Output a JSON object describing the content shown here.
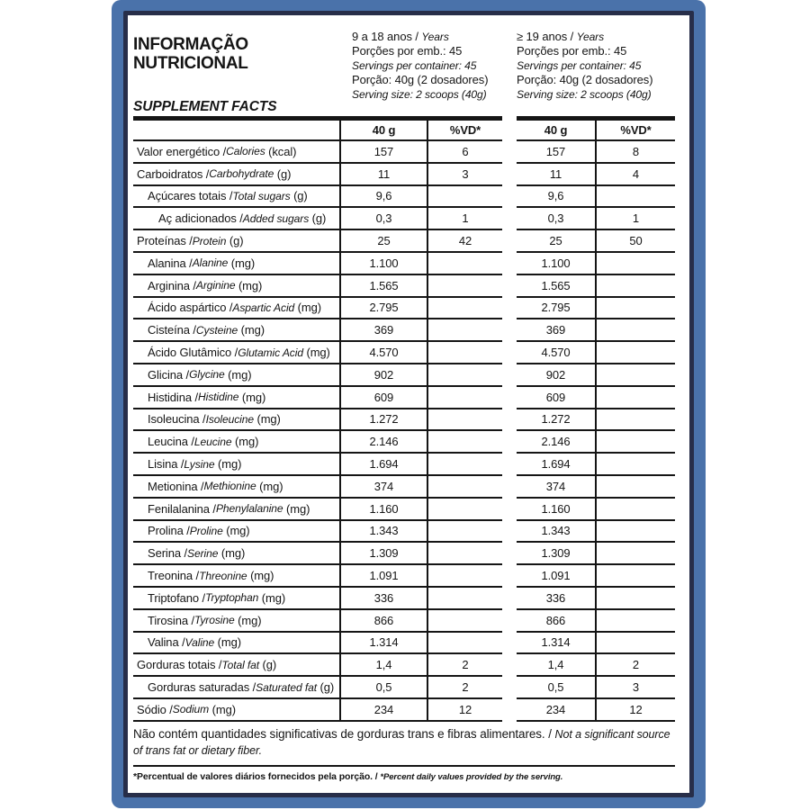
{
  "colors": {
    "frame_blue": "#4a72aa",
    "frame_navy": "#272e49",
    "line_black": "#151515"
  },
  "header": {
    "title_line1": "INFORMAÇÃO",
    "title_line2": "NUTRICIONAL",
    "subtitle": "SUPPLEMENT FACTS",
    "groups": [
      {
        "name": "9-18-years",
        "lines": [
          {
            "pt": "9 a 18 anos / ",
            "en": "Years"
          },
          {
            "pt": "Porções por emb.: 45",
            "en": ""
          },
          {
            "pt": "",
            "en": "Servings per container: 45"
          },
          {
            "pt": "Porção: 40g (2 dosadores)",
            "en": ""
          },
          {
            "pt": "",
            "en": "Serving size: 2 scoops (40g)"
          }
        ]
      },
      {
        "name": "19-plus-years",
        "lines": [
          {
            "pt": "≥ 19 anos / ",
            "en": "Years"
          },
          {
            "pt": "Porções por emb.: 45",
            "en": ""
          },
          {
            "pt": "",
            "en": "Servings per container: 45"
          },
          {
            "pt": "Porção: 40g (2 dosadores)",
            "en": ""
          },
          {
            "pt": "",
            "en": "Serving size: 2 scoops (40g)"
          }
        ]
      }
    ]
  },
  "table": {
    "col_headers": {
      "amount": "40 g",
      "dv": "%VD*"
    },
    "rows": [
      {
        "pt": "Valor energético",
        "en": "Calories",
        "unit": "(kcal)",
        "indent": 0,
        "g1": {
          "amount": "157",
          "dv": "6"
        },
        "g2": {
          "amount": "157",
          "dv": "8"
        }
      },
      {
        "pt": "Carboidratos",
        "en": "Carbohydrate",
        "unit": "(g)",
        "indent": 0,
        "g1": {
          "amount": "11",
          "dv": "3"
        },
        "g2": {
          "amount": "11",
          "dv": "4"
        }
      },
      {
        "pt": "Açúcares totais",
        "en": "Total sugars",
        "unit": "(g)",
        "indent": 1,
        "g1": {
          "amount": "9,6",
          "dv": ""
        },
        "g2": {
          "amount": "9,6",
          "dv": ""
        }
      },
      {
        "pt": "Aç adicionados",
        "en": "Added sugars",
        "unit": "(g)",
        "indent": 2,
        "g1": {
          "amount": "0,3",
          "dv": "1"
        },
        "g2": {
          "amount": "0,3",
          "dv": "1"
        }
      },
      {
        "pt": "Proteínas",
        "en": "Protein",
        "unit": "(g)",
        "indent": 0,
        "g1": {
          "amount": "25",
          "dv": "42"
        },
        "g2": {
          "amount": "25",
          "dv": "50"
        }
      },
      {
        "pt": "Alanina",
        "en": "Alanine",
        "unit": "(mg)",
        "indent": 1,
        "g1": {
          "amount": "1.100",
          "dv": ""
        },
        "g2": {
          "amount": "1.100",
          "dv": ""
        }
      },
      {
        "pt": "Arginina",
        "en": "Arginine",
        "unit": "(mg)",
        "indent": 1,
        "g1": {
          "amount": "1.565",
          "dv": ""
        },
        "g2": {
          "amount": "1.565",
          "dv": ""
        }
      },
      {
        "pt": "Ácido aspártico",
        "en": "Aspartic Acid",
        "unit": "(mg)",
        "indent": 1,
        "g1": {
          "amount": "2.795",
          "dv": ""
        },
        "g2": {
          "amount": "2.795",
          "dv": ""
        }
      },
      {
        "pt": "Cisteína",
        "en": "Cysteine",
        "unit": "(mg)",
        "indent": 1,
        "g1": {
          "amount": "369",
          "dv": ""
        },
        "g2": {
          "amount": "369",
          "dv": ""
        }
      },
      {
        "pt": "Ácido Glutâmico",
        "en": "Glutamic Acid",
        "unit": "(mg)",
        "indent": 1,
        "g1": {
          "amount": "4.570",
          "dv": ""
        },
        "g2": {
          "amount": "4.570",
          "dv": ""
        }
      },
      {
        "pt": "Glicina",
        "en": "Glycine",
        "unit": "(mg)",
        "indent": 1,
        "g1": {
          "amount": "902",
          "dv": ""
        },
        "g2": {
          "amount": "902",
          "dv": ""
        }
      },
      {
        "pt": "Histidina",
        "en": "Histidine",
        "unit": "(mg)",
        "indent": 1,
        "g1": {
          "amount": "609",
          "dv": ""
        },
        "g2": {
          "amount": "609",
          "dv": ""
        }
      },
      {
        "pt": "Isoleucina",
        "en": "Isoleucine",
        "unit": "(mg)",
        "indent": 1,
        "g1": {
          "amount": "1.272",
          "dv": ""
        },
        "g2": {
          "amount": "1.272",
          "dv": ""
        }
      },
      {
        "pt": "Leucina",
        "en": "Leucine",
        "unit": "(mg)",
        "indent": 1,
        "g1": {
          "amount": "2.146",
          "dv": ""
        },
        "g2": {
          "amount": "2.146",
          "dv": ""
        }
      },
      {
        "pt": "Lisina",
        "en": "Lysine",
        "unit": "(mg)",
        "indent": 1,
        "g1": {
          "amount": "1.694",
          "dv": ""
        },
        "g2": {
          "amount": "1.694",
          "dv": ""
        }
      },
      {
        "pt": "Metionina",
        "en": "Methionine",
        "unit": "(mg)",
        "indent": 1,
        "g1": {
          "amount": "374",
          "dv": ""
        },
        "g2": {
          "amount": "374",
          "dv": ""
        }
      },
      {
        "pt": "Fenilalanina",
        "en": "Phenylalanine",
        "unit": "(mg)",
        "indent": 1,
        "g1": {
          "amount": "1.160",
          "dv": ""
        },
        "g2": {
          "amount": "1.160",
          "dv": ""
        }
      },
      {
        "pt": "Prolina",
        "en": "Proline",
        "unit": "(mg)",
        "indent": 1,
        "g1": {
          "amount": "1.343",
          "dv": ""
        },
        "g2": {
          "amount": "1.343",
          "dv": ""
        }
      },
      {
        "pt": "Serina",
        "en": "Serine",
        "unit": "(mg)",
        "indent": 1,
        "g1": {
          "amount": "1.309",
          "dv": ""
        },
        "g2": {
          "amount": "1.309",
          "dv": ""
        }
      },
      {
        "pt": "Treonina",
        "en": "Threonine",
        "unit": "(mg)",
        "indent": 1,
        "g1": {
          "amount": "1.091",
          "dv": ""
        },
        "g2": {
          "amount": "1.091",
          "dv": ""
        }
      },
      {
        "pt": "Triptofano",
        "en": "Tryptophan",
        "unit": "(mg)",
        "indent": 1,
        "g1": {
          "amount": "336",
          "dv": ""
        },
        "g2": {
          "amount": "336",
          "dv": ""
        }
      },
      {
        "pt": "Tirosina",
        "en": "Tyrosine",
        "unit": "(mg)",
        "indent": 1,
        "g1": {
          "amount": "866",
          "dv": ""
        },
        "g2": {
          "amount": "866",
          "dv": ""
        }
      },
      {
        "pt": "Valina",
        "en": "Valine",
        "unit": "(mg)",
        "indent": 1,
        "g1": {
          "amount": "1.314",
          "dv": ""
        },
        "g2": {
          "amount": "1.314",
          "dv": ""
        }
      },
      {
        "pt": "Gorduras totais",
        "en": "Total fat",
        "unit": "(g)",
        "indent": 0,
        "g1": {
          "amount": "1,4",
          "dv": "2"
        },
        "g2": {
          "amount": "1,4",
          "dv": "2"
        }
      },
      {
        "pt": "Gorduras saturadas",
        "en": "Saturated fat",
        "unit": "(g)",
        "indent": 1,
        "g1": {
          "amount": "0,5",
          "dv": "2"
        },
        "g2": {
          "amount": "0,5",
          "dv": "3"
        }
      },
      {
        "pt": "Sódio",
        "en": "Sodium",
        "unit": "(mg)",
        "indent": 0,
        "g1": {
          "amount": "234",
          "dv": "12"
        },
        "g2": {
          "amount": "234",
          "dv": "12"
        }
      }
    ]
  },
  "footer": {
    "note_pt": "Não contém quantidades significativas de gorduras trans e fibras alimentares. / ",
    "note_en": "Not a significant source of trans fat or dietary fiber.",
    "footnote_pt": "*Percentual de valores diários fornecidos pela porção. / ",
    "footnote_en": "*Percent daily values provided by the serving."
  }
}
